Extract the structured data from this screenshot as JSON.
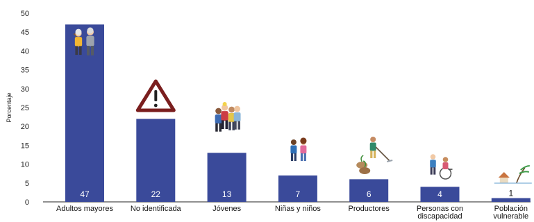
{
  "chart_data": {
    "type": "bar",
    "title": "",
    "xlabel": "",
    "ylabel": "Porcentaje",
    "ylim": [
      0,
      50
    ],
    "yticks": [
      0,
      5,
      10,
      15,
      20,
      25,
      30,
      35,
      40,
      45,
      50
    ],
    "grid": false,
    "categories": [
      [
        "Adultos mayores"
      ],
      [
        "No identificada"
      ],
      [
        "Jóvenes"
      ],
      [
        "Niñas y niños"
      ],
      [
        "Productores"
      ],
      [
        "Personas con",
        "discapacidad"
      ],
      [
        "Población",
        "vulnerable"
      ]
    ],
    "values": [
      47,
      22,
      13,
      7,
      6,
      4,
      1
    ],
    "icons": [
      "elderly-couple-icon",
      "warning-triangle-icon",
      "youth-group-icon",
      "children-icon",
      "farmer-icon",
      "wheelchair-icon",
      "storm-house-icon"
    ],
    "colors": {
      "bar": "#3a4a9a",
      "axis": "#222222",
      "warning": "#7a1e1e"
    }
  }
}
